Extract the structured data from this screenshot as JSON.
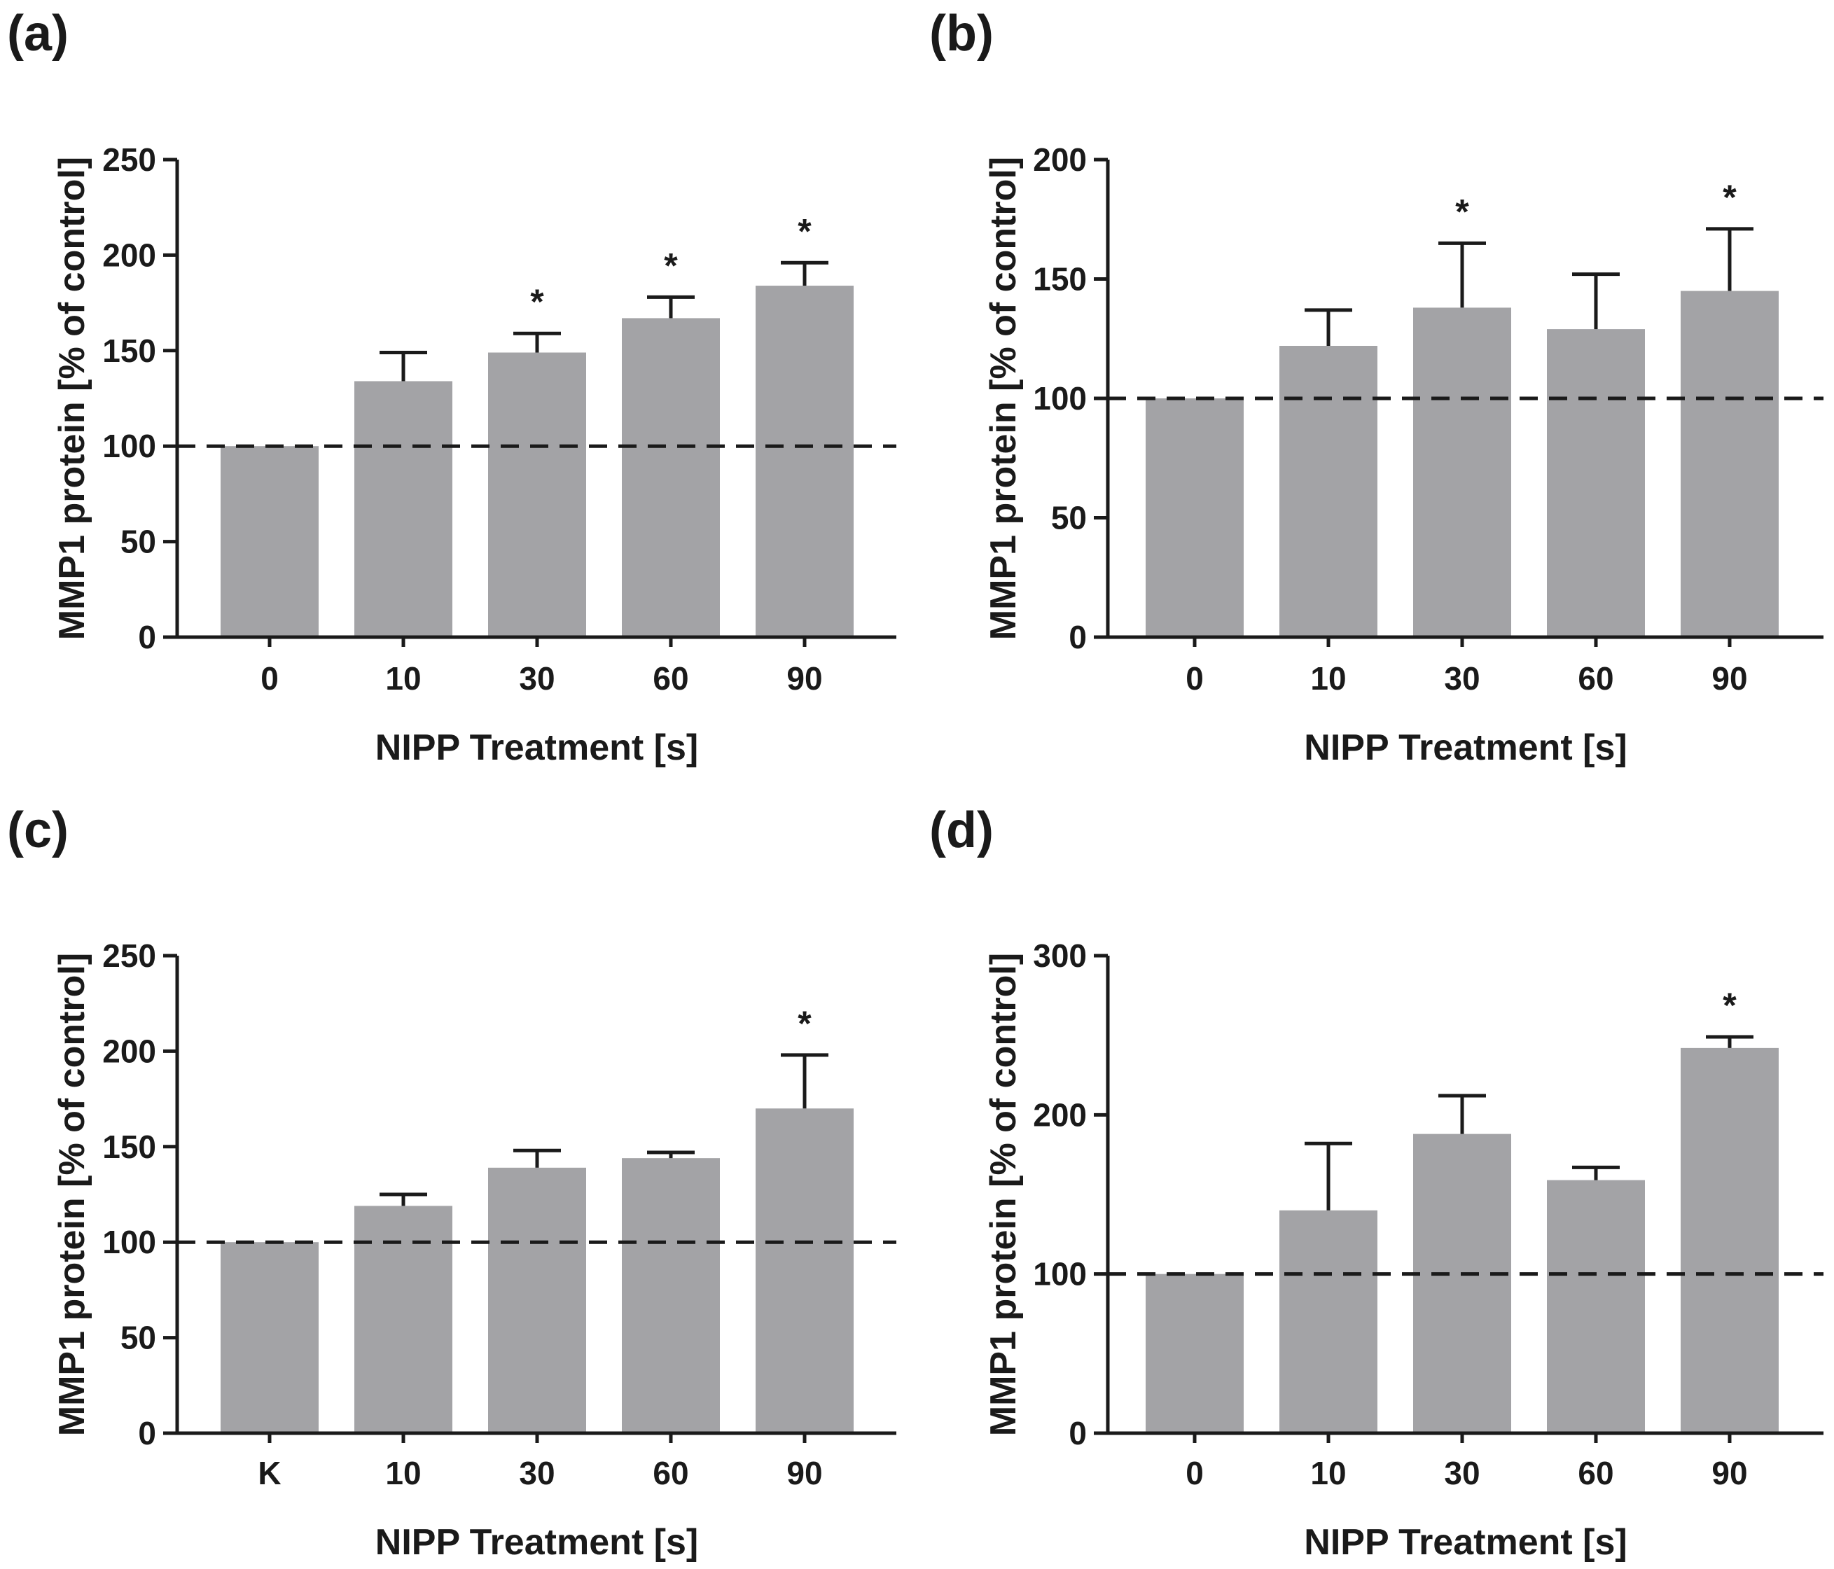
{
  "colors": {
    "bar": "#a3a3a6",
    "axis": "#1a1a1a",
    "reference_line": "#1a1a1a"
  },
  "chart_data": [
    {
      "panel": "(a)",
      "type": "bar",
      "categories": [
        "0",
        "10",
        "30",
        "60",
        "90"
      ],
      "series": [
        {
          "values": [
            100,
            134,
            149,
            167,
            184
          ],
          "error": [
            0,
            15,
            10,
            11,
            12
          ]
        }
      ],
      "significance": [
        "",
        "",
        "*",
        "*",
        "*"
      ],
      "reference_line": 100,
      "xlabel": "NIPP Treatment [s]",
      "ylabel": "MMP1 protein [% of control]",
      "ylim": [
        0,
        250
      ],
      "yticks": [
        0,
        50,
        100,
        150,
        200,
        250
      ],
      "grid": false
    },
    {
      "panel": "(b)",
      "type": "bar",
      "categories": [
        "0",
        "10",
        "30",
        "60",
        "90"
      ],
      "series": [
        {
          "values": [
            100,
            122,
            138,
            129,
            145
          ],
          "error": [
            0,
            15,
            27,
            23,
            26
          ]
        }
      ],
      "significance": [
        "",
        "",
        "*",
        "",
        "*"
      ],
      "reference_line": 100,
      "xlabel": "NIPP Treatment [s]",
      "ylabel": "MMP1 protein [% of control]",
      "ylim": [
        0,
        200
      ],
      "yticks": [
        0,
        50,
        100,
        150,
        200
      ],
      "grid": false
    },
    {
      "panel": "(c)",
      "type": "bar",
      "categories": [
        "K",
        "10",
        "30",
        "60",
        "90"
      ],
      "series": [
        {
          "values": [
            100,
            119,
            139,
            144,
            170
          ],
          "error": [
            0,
            6,
            9,
            3,
            28
          ]
        }
      ],
      "significance": [
        "",
        "",
        "",
        "",
        "*"
      ],
      "reference_line": 100,
      "xlabel": "NIPP Treatment [s]",
      "ylabel": "MMP1 protein [% of control]",
      "ylim": [
        0,
        250
      ],
      "yticks": [
        0,
        50,
        100,
        150,
        200,
        250
      ],
      "grid": false
    },
    {
      "panel": "(d)",
      "type": "bar",
      "categories": [
        "0",
        "10",
        "30",
        "60",
        "90"
      ],
      "series": [
        {
          "values": [
            100,
            140,
            188,
            159,
            242
          ],
          "error": [
            0,
            42,
            24,
            8,
            7
          ]
        }
      ],
      "significance": [
        "",
        "",
        "",
        "",
        "*"
      ],
      "reference_line": 100,
      "xlabel": "NIPP Treatment [s]",
      "ylabel": "MMP1 protein [% of control]",
      "ylim": [
        0,
        300
      ],
      "yticks": [
        0,
        100,
        200,
        300
      ],
      "grid": false
    }
  ]
}
